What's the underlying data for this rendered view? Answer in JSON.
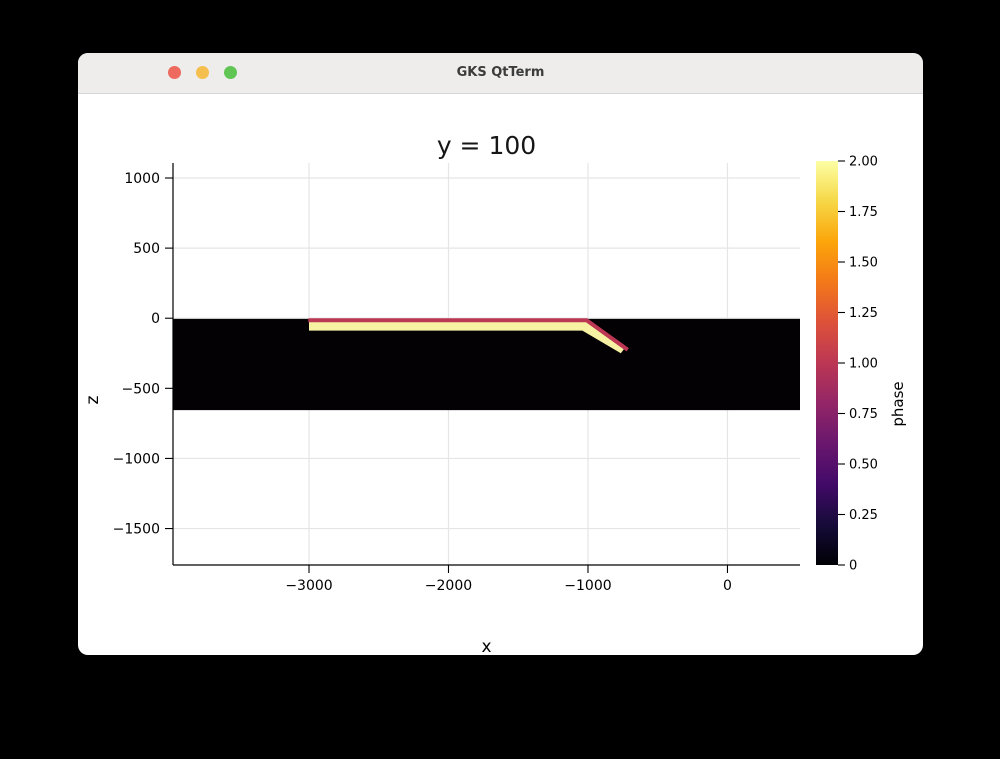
{
  "window": {
    "title": "GKS QtTerm",
    "controls": [
      {
        "name": "close",
        "color": "#ee6a5f"
      },
      {
        "name": "minimize",
        "color": "#f5bf4f"
      },
      {
        "name": "zoom",
        "color": "#61c554"
      }
    ]
  },
  "chart_data": {
    "type": "heatmap",
    "title": "y = 100",
    "xlabel": "x",
    "ylabel": "z",
    "grid": true,
    "xlim": [
      -3975,
      520
    ],
    "ylim": [
      -1760,
      1107
    ],
    "x_ticks": [
      -3000,
      -2000,
      -1000,
      0
    ],
    "x_tick_labels": [
      "−3000",
      "−2000",
      "−1000",
      "0"
    ],
    "y_ticks": [
      1000,
      500,
      0,
      -500,
      -1000,
      -1500
    ],
    "y_tick_labels": [
      "1000",
      "500",
      "0",
      "−500",
      "−1000",
      "−1500"
    ],
    "regions": [
      {
        "name": "phase0-medium-band",
        "kind": "polygon",
        "phase_value": 0,
        "fill": "#030104",
        "points": [
          [
            -3975,
            -5
          ],
          [
            520,
            -5
          ],
          [
            520,
            -655
          ],
          [
            -3975,
            -655
          ]
        ]
      },
      {
        "name": "phase2-stripe",
        "kind": "polygon",
        "phase_value": 2,
        "fill": "#f7f2a3",
        "points": [
          [
            -3000,
            -25
          ],
          [
            -1010,
            -25
          ],
          [
            -730,
            -205
          ],
          [
            -765,
            -250
          ],
          [
            -1040,
            -88
          ],
          [
            -3000,
            -88
          ]
        ]
      },
      {
        "name": "phase1-interface-line",
        "kind": "line",
        "phase_value": 1,
        "stroke": "#bc3754",
        "stroke_width": 4,
        "points": [
          [
            -3005,
            -15
          ],
          [
            -1010,
            -15
          ],
          [
            -715,
            -225
          ]
        ]
      }
    ],
    "colorbar": {
      "label": "phase",
      "range": [
        0,
        2
      ],
      "ticks": [
        0,
        0.25,
        0.5,
        0.75,
        1,
        1.25,
        1.5,
        1.75,
        2
      ],
      "tick_labels": [
        "0",
        "0.25",
        "0.50",
        "0.75",
        "1.00",
        "1.25",
        "1.50",
        "1.75",
        "2.00"
      ],
      "colormap": "inferno",
      "stops": [
        {
          "value": 0.0,
          "color": "#000004"
        },
        {
          "value": 0.2,
          "color": "#160b39"
        },
        {
          "value": 0.4,
          "color": "#420a68"
        },
        {
          "value": 0.6,
          "color": "#6a176e"
        },
        {
          "value": 0.8,
          "color": "#932667"
        },
        {
          "value": 1.0,
          "color": "#bc3754"
        },
        {
          "value": 1.2,
          "color": "#dd513a"
        },
        {
          "value": 1.4,
          "color": "#f37819"
        },
        {
          "value": 1.6,
          "color": "#fca50a"
        },
        {
          "value": 1.8,
          "color": "#f6d746"
        },
        {
          "value": 2.0,
          "color": "#fcffa4"
        }
      ]
    }
  }
}
